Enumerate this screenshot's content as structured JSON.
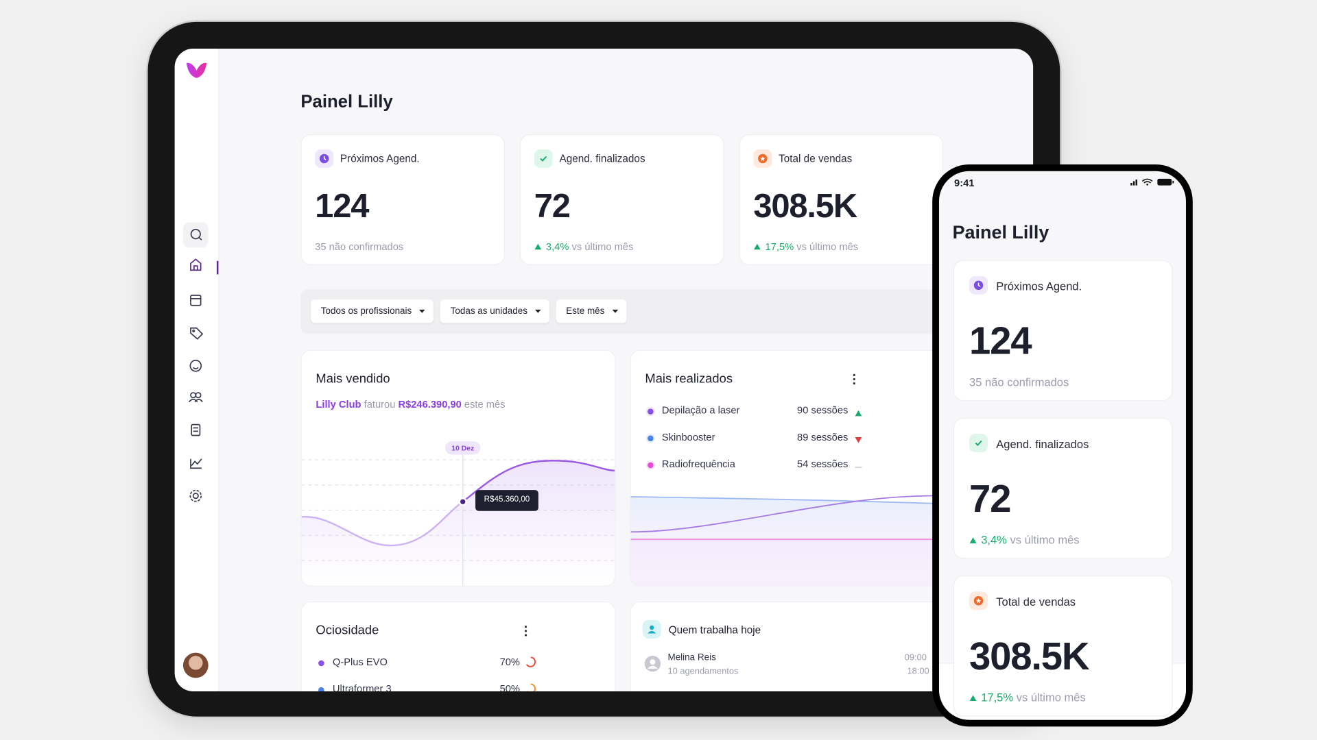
{
  "tablet": {
    "title": "Painel Lilly",
    "stats": [
      {
        "label": "Próximos Agend.",
        "value": "124",
        "note": "35 não confirmados"
      },
      {
        "label": "Agend. finalizados",
        "value": "72",
        "change": "3,4%",
        "note": "vs último mês"
      },
      {
        "label": "Total de vendas",
        "value": "308.5K",
        "change": "17,5%",
        "note": "vs último mês"
      }
    ],
    "filters": [
      "Todos os profissionais",
      "Todas as unidades",
      "Este mês"
    ],
    "best_seller": {
      "title": "Mais vendido",
      "name": "Lilly Club",
      "verb": "faturou",
      "amount": "R$246.390,90",
      "suffix": "este mês",
      "tooltip_date": "10 Dez",
      "tooltip_value": "R$45.360,00"
    },
    "most_performed": {
      "title": "Mais realizados",
      "items": [
        {
          "name": "Depilação a laser",
          "count": "90 sessões"
        },
        {
          "name": "Skinbooster",
          "count": "89 sessões"
        },
        {
          "name": "Radiofrequência",
          "count": "54 sessões"
        }
      ]
    },
    "idleness": {
      "title": "Ociosidade",
      "items": [
        {
          "name": "Q-Plus EVO",
          "value": "70%"
        },
        {
          "name": "Ultraformer 3",
          "value": "50%"
        }
      ]
    },
    "working_today": {
      "title": "Quem trabalha hoje",
      "people": [
        {
          "name": "Melina Reis",
          "note": "10 agendamentos",
          "start": "09:00",
          "end": "18:00"
        }
      ]
    }
  },
  "phone": {
    "time": "9:41",
    "title": "Painel Lilly"
  }
}
